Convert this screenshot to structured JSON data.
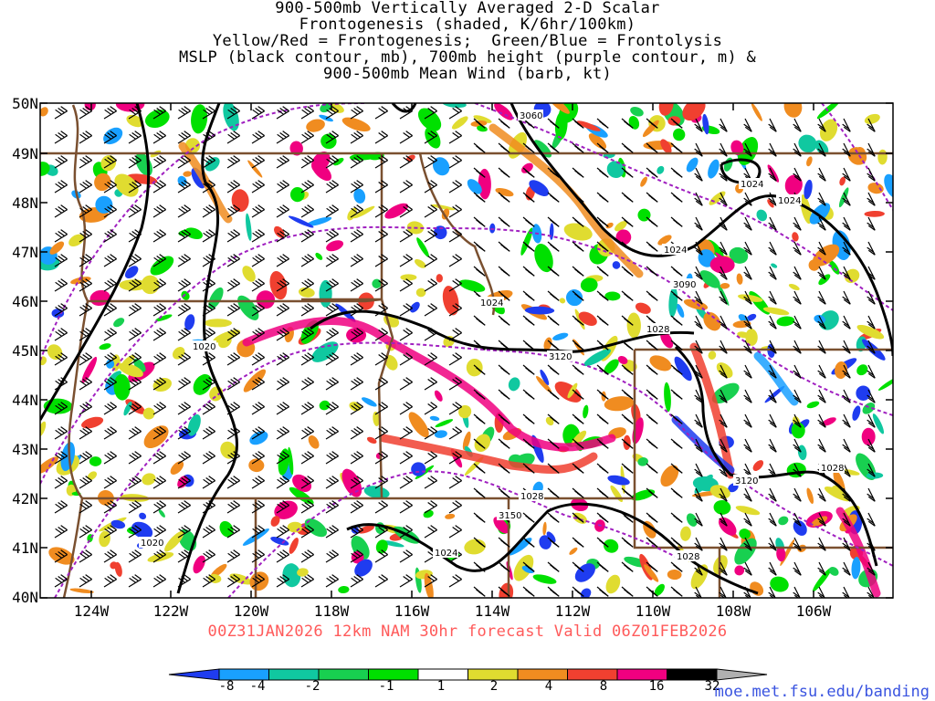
{
  "title": {
    "lines": [
      "900-500mb Vertically Averaged 2-D Scalar",
      "Frontogenesis (shaded, K/6hr/100km)",
      "Yellow/Red = Frontogenesis;  Green/Blue = Frontolysis",
      "MSLP (black contour, mb), 700mb height (purple contour, m) &",
      "900-500mb Mean Wind (barb, kt)"
    ]
  },
  "lat_labels": [
    "50N",
    "49N",
    "48N",
    "47N",
    "46N",
    "45N",
    "44N",
    "43N",
    "42N",
    "41N",
    "40N"
  ],
  "lon_labels": [
    "124W",
    "122W",
    "120W",
    "118W",
    "116W",
    "114W",
    "112W",
    "110W",
    "108W",
    "106W"
  ],
  "valid_text": "00Z31JAN2026 12km NAM 30hr forecast Valid 06Z01FEB2026",
  "colorbar": {
    "labels": [
      "-8",
      "-4",
      "-2",
      "-1",
      "1",
      "2",
      "4",
      "8",
      "16",
      "32"
    ],
    "colors": [
      "#1f3cf0",
      "#19a0ff",
      "#10c8a0",
      "#18d050",
      "#00e000",
      "#ffffff",
      "#e0dc30",
      "#f08c20",
      "#f04030",
      "#f00080",
      "#000000",
      "#b0b0b0"
    ]
  },
  "mslp_labels": [
    "1024",
    "1024",
    "1024",
    "1024",
    "1028",
    "1020",
    "1020",
    "1028",
    "1024",
    "1028",
    "1028"
  ],
  "height_labels": [
    "3060",
    "3090",
    "3120",
    "3120",
    "3150"
  ],
  "credit": "moe.met.fsu.edu/banding",
  "colors": {
    "mslp": "#000000",
    "height": "#a020c0",
    "borders": "#7a5030",
    "valid": "#ff5a5a",
    "credit": "#3a54e0"
  }
}
